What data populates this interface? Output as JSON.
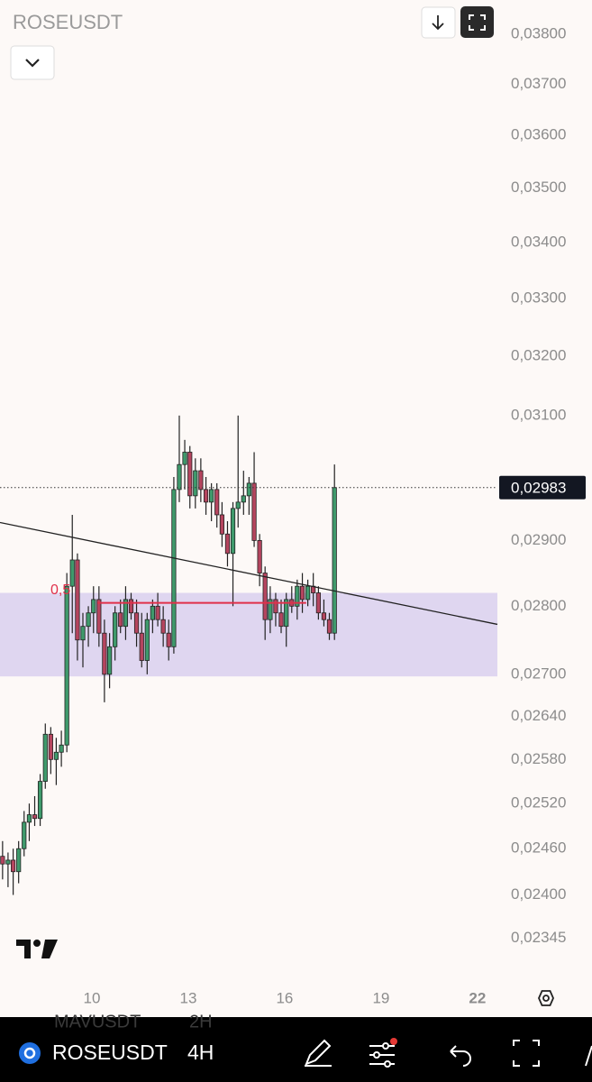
{
  "chart_data": {
    "type": "candlestick",
    "title": "ROSEUSDT",
    "log_scale": true,
    "grid": false,
    "up_color": "#3f9a6c",
    "down_color": "#b5455f",
    "wick_color": "#222222",
    "xlim": [
      7.14,
      22.62
    ],
    "xticks": [
      10,
      13,
      16,
      19,
      22
    ],
    "ylim": [
      0.0229,
      0.0387
    ],
    "yticks": [
      {
        "value": 0.038,
        "label": "0,03800"
      },
      {
        "value": 0.037,
        "label": "0,03700"
      },
      {
        "value": 0.036,
        "label": "0,03600"
      },
      {
        "value": 0.035,
        "label": "0,03500"
      },
      {
        "value": 0.034,
        "label": "0,03400"
      },
      {
        "value": 0.033,
        "label": "0,03300"
      },
      {
        "value": 0.032,
        "label": "0,03200"
      },
      {
        "value": 0.031,
        "label": "0,03100"
      },
      {
        "value": 0.029,
        "label": "0,02900"
      },
      {
        "value": 0.028,
        "label": "0,02800"
      },
      {
        "value": 0.027,
        "label": "0,02700"
      },
      {
        "value": 0.0264,
        "label": "0,02640"
      },
      {
        "value": 0.0258,
        "label": "0,02580"
      },
      {
        "value": 0.0252,
        "label": "0,02520"
      },
      {
        "value": 0.0246,
        "label": "0,02460"
      },
      {
        "value": 0.024,
        "label": "0,02400"
      },
      {
        "value": 0.02345,
        "label": "0,02345"
      }
    ],
    "x": [
      7.22,
      7.39,
      7.55,
      7.72,
      7.89,
      8.05,
      8.22,
      8.39,
      8.55,
      8.72,
      8.89,
      9.05,
      9.22,
      9.39,
      9.55,
      9.72,
      9.89,
      10.05,
      10.22,
      10.39,
      10.55,
      10.72,
      10.89,
      11.05,
      11.22,
      11.39,
      11.55,
      11.72,
      11.89,
      12.05,
      12.22,
      12.39,
      12.55,
      12.72,
      12.89,
      13.05,
      13.22,
      13.39,
      13.55,
      13.72,
      13.89,
      14.05,
      14.22,
      14.39,
      14.55,
      14.72,
      14.89,
      15.05,
      15.22,
      15.39,
      15.55,
      15.72,
      15.89,
      16.05,
      16.22,
      16.39,
      16.55,
      16.72,
      16.89,
      17.05,
      17.22,
      17.39,
      17.55
    ],
    "candles": [
      [
        0.0245,
        0.0247,
        0.0242,
        0.0244
      ],
      [
        0.0244,
        0.02455,
        0.0241,
        0.02445
      ],
      [
        0.02445,
        0.0246,
        0.024,
        0.0243
      ],
      [
        0.0243,
        0.0247,
        0.02415,
        0.0246
      ],
      [
        0.0246,
        0.0251,
        0.0245,
        0.02495
      ],
      [
        0.02495,
        0.0252,
        0.0247,
        0.02505
      ],
      [
        0.02505,
        0.0253,
        0.0249,
        0.025
      ],
      [
        0.025,
        0.0256,
        0.0249,
        0.0255
      ],
      [
        0.0255,
        0.0263,
        0.0254,
        0.02615
      ],
      [
        0.02615,
        0.02625,
        0.0256,
        0.0258
      ],
      [
        0.0258,
        0.0261,
        0.02545,
        0.0259
      ],
      [
        0.0259,
        0.0262,
        0.0257,
        0.026
      ],
      [
        0.026,
        0.0285,
        0.0259,
        0.0283
      ],
      [
        0.0283,
        0.0294,
        0.0276,
        0.0287
      ],
      [
        0.0287,
        0.0288,
        0.0272,
        0.0275
      ],
      [
        0.0275,
        0.0279,
        0.0271,
        0.0277
      ],
      [
        0.0277,
        0.028,
        0.0274,
        0.0279
      ],
      [
        0.0279,
        0.0283,
        0.0276,
        0.0281
      ],
      [
        0.0281,
        0.0283,
        0.0274,
        0.0276
      ],
      [
        0.0276,
        0.0278,
        0.0266,
        0.027
      ],
      [
        0.027,
        0.0276,
        0.0268,
        0.0274
      ],
      [
        0.0274,
        0.028,
        0.0272,
        0.0279
      ],
      [
        0.0279,
        0.0281,
        0.0276,
        0.0277
      ],
      [
        0.0277,
        0.0283,
        0.0275,
        0.0281
      ],
      [
        0.0281,
        0.0282,
        0.0278,
        0.0279
      ],
      [
        0.0279,
        0.0281,
        0.0274,
        0.0276
      ],
      [
        0.0276,
        0.0279,
        0.0271,
        0.0272
      ],
      [
        0.0272,
        0.0279,
        0.027,
        0.0278
      ],
      [
        0.0278,
        0.0281,
        0.0276,
        0.028
      ],
      [
        0.028,
        0.0282,
        0.0277,
        0.0278
      ],
      [
        0.0278,
        0.028,
        0.0274,
        0.0276
      ],
      [
        0.0276,
        0.0278,
        0.0272,
        0.0274
      ],
      [
        0.0274,
        0.03,
        0.0273,
        0.0298
      ],
      [
        0.0298,
        0.031,
        0.0296,
        0.0302
      ],
      [
        0.0302,
        0.0306,
        0.0298,
        0.0304
      ],
      [
        0.0304,
        0.0305,
        0.0295,
        0.0297
      ],
      [
        0.0297,
        0.0303,
        0.0295,
        0.0301
      ],
      [
        0.0301,
        0.0303,
        0.0296,
        0.0298
      ],
      [
        0.0298,
        0.03,
        0.0294,
        0.0296
      ],
      [
        0.0296,
        0.0299,
        0.0293,
        0.0298
      ],
      [
        0.0298,
        0.0299,
        0.0292,
        0.0294
      ],
      [
        0.0294,
        0.0296,
        0.0289,
        0.0291
      ],
      [
        0.0291,
        0.0293,
        0.0286,
        0.0288
      ],
      [
        0.0288,
        0.0296,
        0.028,
        0.0295
      ],
      [
        0.0295,
        0.031,
        0.0292,
        0.0296
      ],
      [
        0.0296,
        0.0301,
        0.0294,
        0.0297
      ],
      [
        0.0297,
        0.03,
        0.0294,
        0.0299
      ],
      [
        0.0299,
        0.0304,
        0.0289,
        0.029
      ],
      [
        0.029,
        0.0291,
        0.0283,
        0.0285
      ],
      [
        0.0285,
        0.0286,
        0.0275,
        0.0278
      ],
      [
        0.0278,
        0.0283,
        0.0276,
        0.0281
      ],
      [
        0.0281,
        0.0282,
        0.0277,
        0.0279
      ],
      [
        0.0279,
        0.0281,
        0.0276,
        0.0277
      ],
      [
        0.0277,
        0.0282,
        0.0274,
        0.0281
      ],
      [
        0.0281,
        0.0283,
        0.0279,
        0.028
      ],
      [
        0.028,
        0.0284,
        0.0278,
        0.0283
      ],
      [
        0.0283,
        0.0285,
        0.0279,
        0.0281
      ],
      [
        0.0281,
        0.0284,
        0.028,
        0.0283
      ],
      [
        0.0283,
        0.0285,
        0.028,
        0.0282
      ],
      [
        0.0282,
        0.0283,
        0.0278,
        0.0279
      ],
      [
        0.0279,
        0.0281,
        0.0277,
        0.0278
      ],
      [
        0.0278,
        0.0279,
        0.0275,
        0.0276
      ],
      [
        0.0276,
        0.0302,
        0.0275,
        0.02983
      ]
    ],
    "last_price": {
      "value": 0.02983,
      "label": "0,02983"
    },
    "zone": {
      "values": [
        0.02697,
        0.0282
      ],
      "color": "#d9d0ee"
    },
    "trendline": {
      "x": [
        7.14,
        22.62
      ],
      "values": [
        0.02928,
        0.02773
      ],
      "color": "#222222"
    },
    "fib_line": {
      "x": [
        10.17,
        16.67
      ],
      "value": 0.02805,
      "label": "0,5",
      "color": "#e0304a"
    }
  },
  "toolbar": {
    "symbol": "ROSEUSDT",
    "interval": "4H",
    "watchlist": [
      {
        "symbol": "MAVUSDT",
        "interval": "2H"
      }
    ]
  }
}
